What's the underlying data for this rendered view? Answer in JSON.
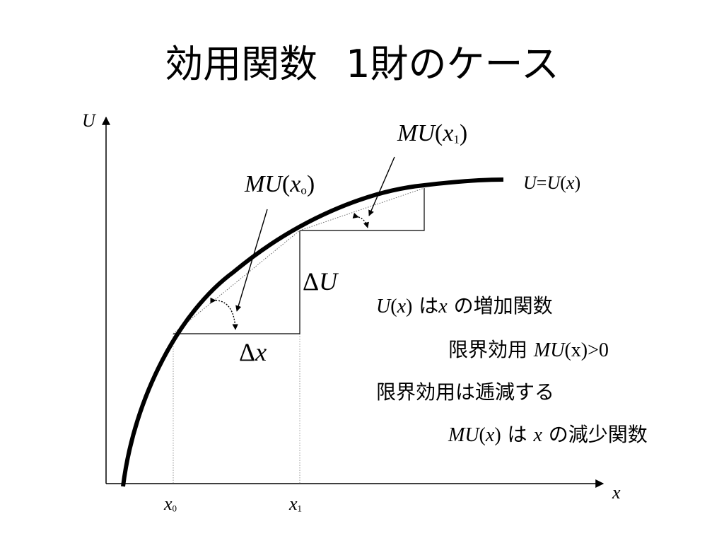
{
  "slide": {
    "title_part1": "効用関数",
    "title_part2": "1財のケース"
  },
  "axes": {
    "y_label": "U",
    "x_label": "x",
    "x0_base": "x",
    "x0_sub": "0",
    "x1_base": "x",
    "x1_sub": "1"
  },
  "curve": {
    "label_u": "U",
    "label_eq": "=",
    "label_fn": "U",
    "label_open": "(",
    "label_arg": "x",
    "label_close": ")"
  },
  "annotations": {
    "delta_u_symbol": "Δ",
    "delta_u_var": "U",
    "delta_x_symbol": "Δ",
    "delta_x_var": "x",
    "mu0_fn": "MU",
    "mu0_open": "(",
    "mu0_var": "x",
    "mu0_sub": "o",
    "mu0_close": ")",
    "mu1_fn": "MU",
    "mu1_open": "(",
    "mu1_var": "x",
    "mu1_sub": "1",
    "mu1_close": ")"
  },
  "notes": {
    "line1_fn": "U",
    "line1_open": "(",
    "line1_var": "x",
    "line1_close": ")",
    "line1_ha": " は",
    "line1_x": "x",
    "line1_rest": " の増加関数",
    "line2_jp": "限界効用 ",
    "line2_fn": "MU",
    "line2_rest": "(x)>0",
    "line3": "限界効用は逓減する",
    "line4_fn": "MU",
    "line4_open": "(",
    "line4_var": "x",
    "line4_close": ")",
    "line4_ha": " は ",
    "line4_x": "x",
    "line4_rest": " の減少関数"
  }
}
